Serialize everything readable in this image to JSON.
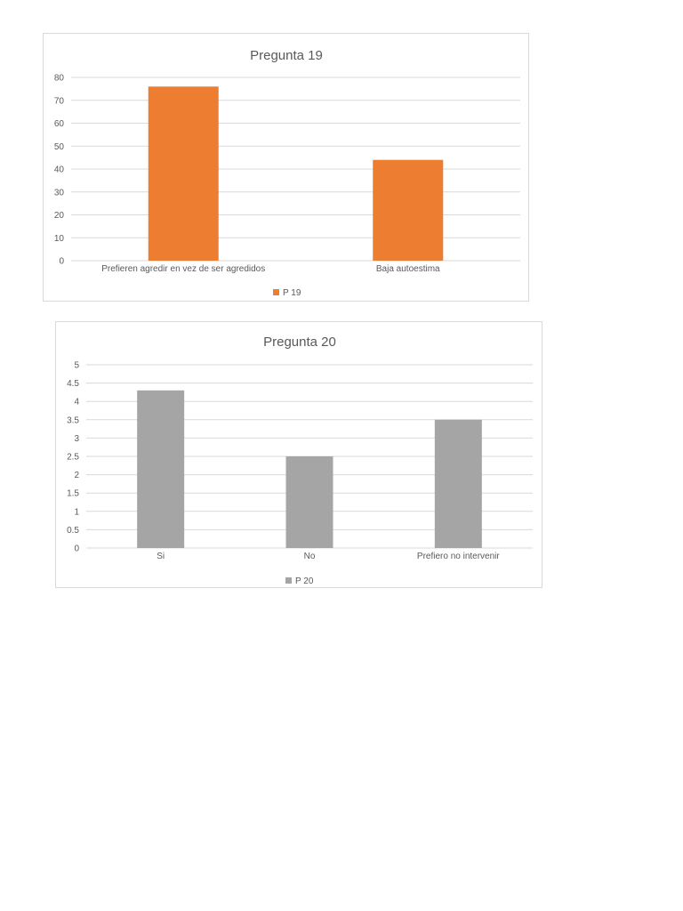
{
  "chart_data": [
    {
      "type": "bar",
      "title": "Pregunta 19",
      "categories": [
        "Prefieren agredir en vez de ser agredidos",
        "Baja autoestima"
      ],
      "series": [
        {
          "name": "P 19",
          "values": [
            76,
            44
          ],
          "color": "#ED7D31"
        }
      ],
      "yticks": [
        "0",
        "10",
        "20",
        "30",
        "40",
        "50",
        "60",
        "70",
        "80"
      ],
      "ylim": [
        0,
        80
      ],
      "grid": true,
      "legend": "bottom"
    },
    {
      "type": "bar",
      "title": "Pregunta 20",
      "categories": [
        "Si",
        "No",
        "Prefiero no intervenir"
      ],
      "series": [
        {
          "name": "P 20",
          "values": [
            4.3,
            2.5,
            3.5
          ],
          "color": "#A5A5A5"
        }
      ],
      "yticks": [
        "0",
        "0.5",
        "1",
        "1.5",
        "2",
        "2.5",
        "3",
        "3.5",
        "4",
        "4.5",
        "5"
      ],
      "ylim": [
        0,
        5
      ],
      "grid": true,
      "legend": "bottom"
    }
  ]
}
